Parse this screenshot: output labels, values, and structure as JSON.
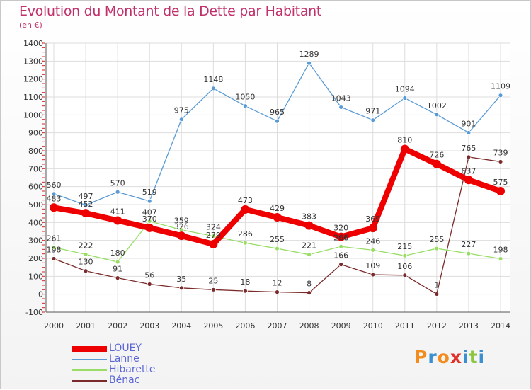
{
  "chart_data": {
    "type": "line",
    "title": "Evolution du Montant de la Dette par Habitant",
    "subtitle": "(en €)",
    "x": [
      "2000",
      "2001",
      "2002",
      "2003",
      "2004",
      "2005",
      "2006",
      "2007",
      "2008",
      "2009",
      "2010",
      "2011",
      "2012",
      "2013",
      "2014"
    ],
    "ylim": [
      -100,
      1400
    ],
    "yticks": [
      "-100",
      "0",
      "100",
      "200",
      "300",
      "400",
      "500",
      "600",
      "700",
      "800",
      "900",
      "1000",
      "1100",
      "1200",
      "1300",
      "1400"
    ],
    "grid": true,
    "legend_position": "bottom-left",
    "series": [
      {
        "name": "LOUEY",
        "color": "#ee0000",
        "values": [
          483,
          452,
          411,
          370,
          326,
          279,
          473,
          429,
          383,
          320,
          369,
          810,
          726,
          637,
          575
        ],
        "labels": [
          "483",
          "452",
          "411",
          "370",
          "326",
          "279",
          "473",
          "429",
          "383",
          "320",
          "369",
          "810",
          "726",
          "637",
          "575"
        ]
      },
      {
        "name": "Lanne",
        "color": "#5b9bd5",
        "values": [
          560,
          497,
          570,
          519,
          975,
          1148,
          1050,
          965,
          1289,
          1043,
          971,
          1094,
          1002,
          901,
          1109
        ],
        "labels": [
          "560",
          "497",
          "570",
          "519",
          "975",
          "1148",
          "1050",
          "965",
          "1289",
          "1043",
          "971",
          "1094",
          "1002",
          "901",
          "1109"
        ]
      },
      {
        "name": "Hibarette",
        "color": "#99dd66",
        "values": [
          261,
          222,
          180,
          407,
          359,
          324,
          286,
          255,
          221,
          266,
          246,
          215,
          255,
          227,
          198
        ],
        "labels": [
          "261",
          "222",
          "180",
          "407",
          "359",
          "324",
          "286",
          "255",
          "221",
          "266",
          "246",
          "215",
          "255",
          "227",
          "198"
        ]
      },
      {
        "name": "Bénac",
        "color": "#7a2a2a",
        "values": [
          198,
          130,
          91,
          56,
          35,
          25,
          18,
          12,
          8,
          166,
          109,
          106,
          1,
          765,
          739
        ],
        "labels": [
          "198",
          "130",
          "91",
          "56",
          "35",
          "25",
          "18",
          "12",
          "8",
          "166",
          "109",
          "106",
          "1",
          "765",
          "739"
        ]
      }
    ]
  },
  "logo": {
    "text": "Proxiti",
    "letters": [
      {
        "char": "P",
        "color": "#f28c1e"
      },
      {
        "char": "r",
        "color": "#3a8fd0"
      },
      {
        "char": "o",
        "color": "#f28c1e"
      },
      {
        "char": "x",
        "color": "#e0302a"
      },
      {
        "char": "i",
        "color": "#3a8fd0"
      },
      {
        "char": "t",
        "color": "#8cc63f"
      },
      {
        "char": "i",
        "color": "#3a8fd0"
      }
    ]
  }
}
